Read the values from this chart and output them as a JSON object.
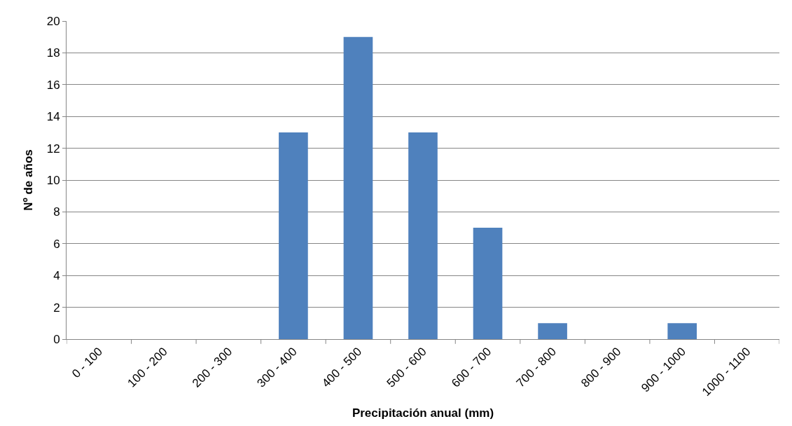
{
  "chart_data": {
    "type": "bar",
    "xlabel": "Precipitación anual (mm)",
    "ylabel": "Nº de años",
    "categories": [
      "0 - 100",
      "100 - 200",
      "200 - 300",
      "300 - 400",
      "400 - 500",
      "500 - 600",
      "600 - 700",
      "700 - 800",
      "800 - 900",
      "900 - 1000",
      "1000 - 1100"
    ],
    "values": [
      0,
      0,
      0,
      13,
      19,
      13,
      7,
      1,
      0,
      1,
      0
    ],
    "color": "#4f81bd",
    "ylim": [
      0,
      20
    ],
    "yticks": [
      0,
      2,
      4,
      6,
      8,
      10,
      12,
      14,
      16,
      18,
      20
    ],
    "grid": "y",
    "legend": false
  }
}
